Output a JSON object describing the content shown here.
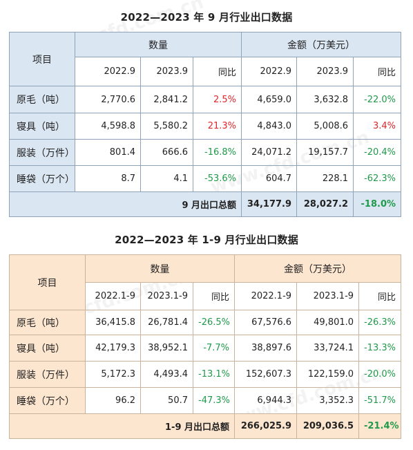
{
  "table1": {
    "title": "2022—2023 年 9 月行业出口数据",
    "col_item": "项目",
    "group_qty": "数量",
    "group_amt": "金额（万美元）",
    "sub": [
      "2022.9",
      "2023.9",
      "同比",
      "2022.9",
      "2023.9",
      "同比"
    ],
    "rows": [
      {
        "name": "原毛（吨）",
        "v": [
          "2,770.6",
          "2,841.2",
          "2.5%",
          "4,659.0",
          "3,632.8",
          "-22.0%"
        ]
      },
      {
        "name": "寝具（吨）",
        "v": [
          "4,598.8",
          "5,580.2",
          "21.3%",
          "4,843.0",
          "5,008.6",
          "3.4%"
        ]
      },
      {
        "name": "服装（万件）",
        "v": [
          "801.4",
          "666.6",
          "-16.8%",
          "24,071.2",
          "19,157.7",
          "-20.4%"
        ]
      },
      {
        "name": "睡袋（万个）",
        "v": [
          "8.7",
          "4.1",
          "-53.6%",
          "604.7",
          "228.1",
          "-62.3%"
        ]
      }
    ],
    "total": {
      "label": "9 月出口总额",
      "v": [
        "34,177.9",
        "28,027.2",
        "-18.0%"
      ]
    }
  },
  "table2": {
    "title": "2022—2023 年 1-9 月行业出口数据",
    "col_item": "项目",
    "group_qty": "数量",
    "group_amt": "金额（万美元）",
    "sub": [
      "2022.1-9",
      "2023.1-9",
      "同比",
      "2022.1-9",
      "2023.1-9",
      "同比"
    ],
    "rows": [
      {
        "name": "原毛（吨）",
        "v": [
          "36,415.8",
          "26,781.4",
          "-26.5%",
          "67,576.6",
          "49,801.0",
          "-26.3%"
        ]
      },
      {
        "name": "寝具（吨）",
        "v": [
          "42,179.3",
          "38,952.1",
          "-7.7%",
          "38,897.6",
          "33,724.1",
          "-13.3%"
        ]
      },
      {
        "name": "服装（万件）",
        "v": [
          "5,172.3",
          "4,493.4",
          "-13.1%",
          "152,607.3",
          "122,159.0",
          "-20.0%"
        ]
      },
      {
        "name": "睡袋（万个）",
        "v": [
          "96.2",
          "50.7",
          "-47.3%",
          "6,944.3",
          "3,352.3",
          "-51.7%"
        ]
      }
    ],
    "total": {
      "label": "1-9 月出口总额",
      "v": [
        "266,025.9",
        "209,036.5",
        "-21.4%"
      ]
    }
  },
  "watermark": "www.cfd.com.cn",
  "colors": {
    "negative": "#1f9a4a",
    "positive": "#e0262b",
    "table1_fill": "#dbe6f3",
    "table2_fill": "#fde6cf"
  }
}
